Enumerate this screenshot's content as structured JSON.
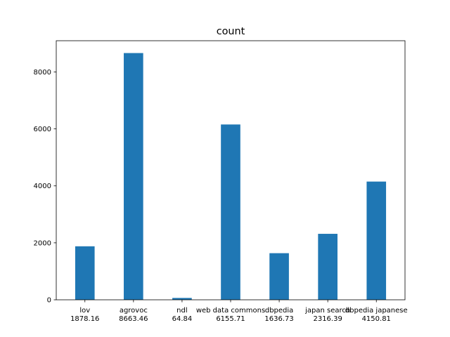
{
  "chart_data": {
    "type": "bar",
    "title": "count",
    "xlabel": "",
    "ylabel": "",
    "categories": [
      "lov",
      "agrovoc",
      "ndl",
      "web data commons",
      "dbpedia",
      "japan search",
      "dbpedia japanese"
    ],
    "values": [
      1878.16,
      8663.46,
      64.84,
      6155.71,
      1636.73,
      2316.39,
      4150.81
    ],
    "category_value_labels": [
      "1878.16",
      "8663.46",
      "64.84",
      "6155.71",
      "1636.73",
      "2316.39",
      "4150.81"
    ],
    "ylim": [
      0,
      9096.63
    ],
    "yticks": [
      0,
      2000,
      4000,
      6000,
      8000
    ],
    "grid": false,
    "legend": "none",
    "bar_color": "#1f77b4"
  }
}
